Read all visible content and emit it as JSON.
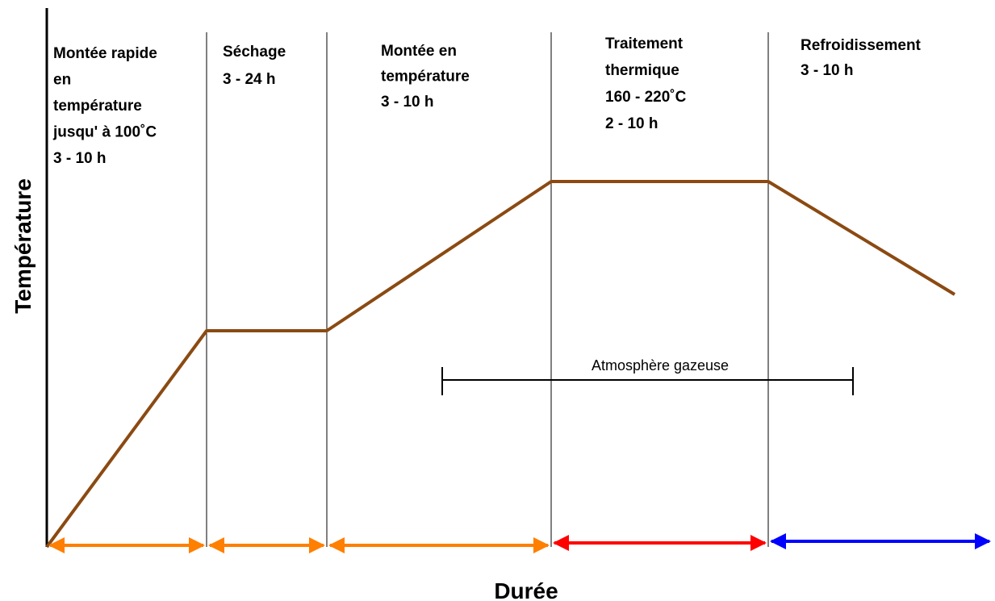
{
  "axes": {
    "y_label": "Température",
    "x_label": "Durée"
  },
  "phases": [
    {
      "lines": [
        "Montée rapide",
        "en",
        "température",
        "jusqu' à 100˚C",
        "3 - 10 h"
      ]
    },
    {
      "lines": [
        "Séchage",
        "3 - 24 h"
      ]
    },
    {
      "lines": [
        "Montée en",
        "température",
        "3 - 10 h"
      ]
    },
    {
      "lines": [
        "Traitement",
        "thermique",
        "160 - 220˚C",
        "2 - 10 h"
      ]
    },
    {
      "lines": [
        "Refroidissement",
        "3 - 10 h"
      ]
    }
  ],
  "annotation": "Atmosphère gazeuse"
}
